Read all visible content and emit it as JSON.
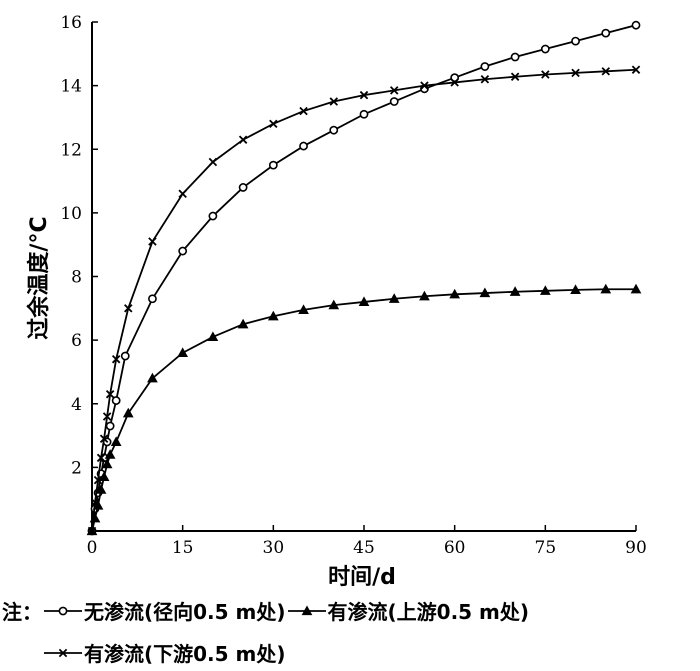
{
  "chart_data": {
    "type": "line",
    "title": "",
    "xlabel": "时间/d",
    "ylabel": "过余温度/°C",
    "xlim": [
      0,
      90
    ],
    "ylim": [
      0,
      16
    ],
    "xticks": [
      0,
      15,
      30,
      45,
      60,
      75,
      90
    ],
    "yticks": [
      2,
      4,
      6,
      8,
      10,
      12,
      14,
      16
    ],
    "grid": false,
    "legend_prefix": "注：",
    "series": [
      {
        "name": "无渗流(径向0.5 m处)",
        "marker": "circle",
        "x": [
          0,
          0.5,
          1,
          1.5,
          2,
          2.5,
          3,
          4,
          5.5,
          10,
          15,
          20,
          25,
          30,
          35,
          40,
          45,
          50,
          55,
          60,
          65,
          70,
          75,
          80,
          85,
          90
        ],
        "y": [
          0,
          0.7,
          1.2,
          1.8,
          2.3,
          2.8,
          3.3,
          4.1,
          5.5,
          7.3,
          8.8,
          9.9,
          10.8,
          11.5,
          12.1,
          12.6,
          13.1,
          13.5,
          13.9,
          14.25,
          14.6,
          14.9,
          15.15,
          15.4,
          15.65,
          15.9
        ]
      },
      {
        "name": "有渗流(上游0.5 m处)",
        "marker": "triangle",
        "x": [
          0,
          0.5,
          1,
          1.5,
          2,
          2.5,
          3,
          4,
          6,
          10,
          15,
          20,
          25,
          30,
          35,
          40,
          45,
          50,
          55,
          60,
          65,
          70,
          75,
          80,
          85,
          90
        ],
        "y": [
          0,
          0.4,
          0.8,
          1.3,
          1.7,
          2.1,
          2.4,
          2.8,
          3.7,
          4.8,
          5.6,
          6.1,
          6.5,
          6.75,
          6.95,
          7.1,
          7.2,
          7.3,
          7.38,
          7.44,
          7.48,
          7.52,
          7.55,
          7.58,
          7.6,
          7.6
        ]
      },
      {
        "name": "有渗流(下游0.5 m处)",
        "marker": "x",
        "x": [
          0,
          0.5,
          1,
          1.5,
          2,
          2.5,
          3,
          4,
          6,
          10,
          15,
          20,
          25,
          30,
          35,
          40,
          45,
          50,
          55,
          60,
          65,
          70,
          75,
          80,
          85,
          90
        ],
        "y": [
          0,
          0.9,
          1.6,
          2.3,
          2.9,
          3.6,
          4.3,
          5.4,
          7.0,
          9.1,
          10.6,
          11.6,
          12.3,
          12.8,
          13.2,
          13.5,
          13.7,
          13.85,
          14.0,
          14.1,
          14.2,
          14.28,
          14.35,
          14.4,
          14.45,
          14.5
        ]
      }
    ]
  }
}
